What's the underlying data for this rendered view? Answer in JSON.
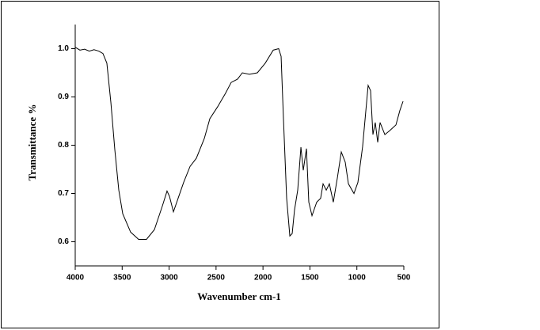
{
  "chart_data": {
    "type": "line",
    "xlabel": "Wavenumber cm-1",
    "ylabel": "Transmittance %",
    "xlim": [
      4000,
      500
    ],
    "ylim": [
      0.55,
      1.05
    ],
    "xticks": [
      4000,
      3500,
      3000,
      2500,
      2000,
      1500,
      1000,
      500
    ],
    "yticks": [
      0.6,
      0.7,
      0.8,
      0.9,
      {
        "value": 1,
        "label": "1.0"
      }
    ],
    "series": [
      {
        "color": "#000000",
        "x": [
          4000,
          3950,
          3900,
          3850,
          3800,
          3750,
          3705,
          3663,
          3620,
          3578,
          3536,
          3494,
          3410,
          3325,
          3241,
          3157,
          3072,
          3022,
          2996,
          2954,
          2904,
          2845,
          2777,
          2710,
          2625,
          2566,
          2482,
          2398,
          2339,
          2271,
          2220,
          2145,
          2060,
          1976,
          1891,
          1833,
          1807,
          1782,
          1748,
          1714,
          1689,
          1664,
          1630,
          1596,
          1571,
          1537,
          1512,
          1478,
          1428,
          1386,
          1360,
          1326,
          1293,
          1251,
          1208,
          1166,
          1124,
          1090,
          1031,
          989,
          939,
          880,
          854,
          829,
          804,
          778,
          753,
          702,
          652,
          584,
          542,
          508
        ],
        "values": [
          1.003,
          0.997,
          0.999,
          0.995,
          0.998,
          0.995,
          0.99,
          0.97,
          0.888,
          0.79,
          0.707,
          0.658,
          0.62,
          0.605,
          0.605,
          0.625,
          0.674,
          0.705,
          0.694,
          0.662,
          0.69,
          0.723,
          0.756,
          0.773,
          0.814,
          0.855,
          0.88,
          0.908,
          0.93,
          0.937,
          0.95,
          0.947,
          0.95,
          0.97,
          0.997,
          1.0,
          0.984,
          0.855,
          0.69,
          0.612,
          0.617,
          0.666,
          0.707,
          0.796,
          0.748,
          0.793,
          0.682,
          0.654,
          0.682,
          0.69,
          0.72,
          0.707,
          0.72,
          0.682,
          0.732,
          0.786,
          0.765,
          0.72,
          0.7,
          0.723,
          0.797,
          0.924,
          0.913,
          0.822,
          0.847,
          0.806,
          0.847,
          0.822,
          0.83,
          0.842,
          0.872,
          0.891
        ]
      }
    ]
  }
}
